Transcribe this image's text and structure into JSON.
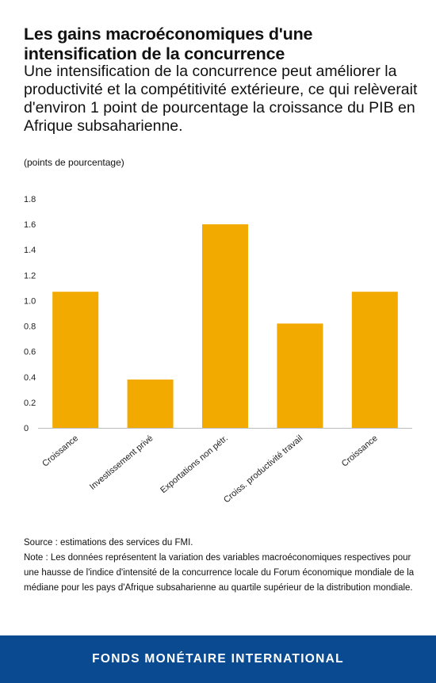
{
  "chart_data": {
    "type": "bar",
    "title": "Les gains macroéconomiques d'une intensification de la concurrence",
    "subtitle": "Une intensification de la concurrence peut améliorer la productivité et la compétitivité extérieure, ce qui relèverait d'environ 1 point de pourcentage la croissance du PIB en Afrique subsaharienne.",
    "unit_label": "(points de pourcentage)",
    "categories": [
      "Croissance",
      "Investissement privé",
      "Exportations non pétr.",
      "Croiss. productivité travail",
      "Croissance"
    ],
    "values": [
      1.07,
      0.38,
      1.6,
      0.82,
      1.07
    ],
    "ylim": [
      0,
      1.8
    ],
    "yticks": [
      0,
      0.2,
      0.4,
      0.6,
      0.8,
      1.0,
      1.2,
      1.4,
      1.6,
      1.8
    ],
    "ytick_labels": [
      "0",
      "0.2",
      "0.4",
      "0.6",
      "0.8",
      "1.0",
      "1.2",
      "1.4",
      "1.6",
      "1.8"
    ],
    "bar_color": "#f2a900",
    "grid": false,
    "legend": "none"
  },
  "footnotes": {
    "source": "Source : estimations des services du FMI.",
    "note": "Note : Les données représentent la variation des variables macroéconomiques respectives pour une hausse de l'indice d'intensité de la concurrence locale du Forum économique mondiale de la médiane pour les pays d'Afrique subsaharienne au quartile supérieur de la distribution mondiale."
  },
  "footer": {
    "label": "FONDS MONÉTAIRE INTERNATIONAL",
    "background": "#0a4a90"
  }
}
